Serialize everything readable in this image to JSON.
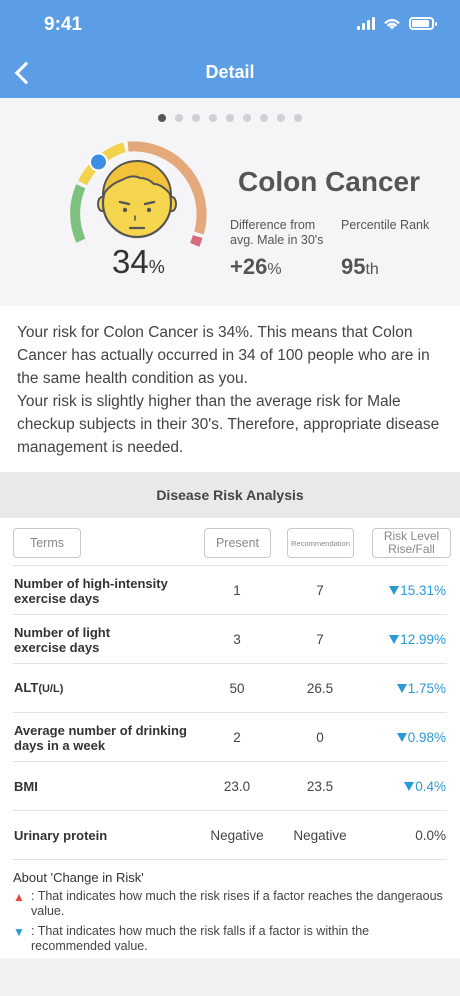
{
  "status": {
    "time": "9:41"
  },
  "nav": {
    "title": "Detail"
  },
  "pager": {
    "count": 9,
    "active": 0
  },
  "gauge": {
    "percent": "34",
    "percent_unit": "%"
  },
  "disease": {
    "name": "Colon Cancer"
  },
  "stats": {
    "difference_label_1": "Difference from",
    "difference_label_2": "avg. Male in 30's",
    "difference_value": "+26",
    "difference_unit": "%",
    "percentile_label": "Percentile Rank",
    "percentile_value": "95",
    "percentile_unit": "th"
  },
  "description": {
    "line1": "Your risk for Colon Cancer is 34%. This means that Colon Cancer has actually occurred in 34 of 100 people who are in the same health condition as you.",
    "line2": "Your risk is slightly higher than the average risk for Male checkup subjects in their 30's. Therefore, appropriate disease management is needed."
  },
  "analysis": {
    "title": "Disease Risk Analysis",
    "headers": {
      "terms": "Terms",
      "present": "Present",
      "recommendation": "Recommendation",
      "risk1": "Risk Level",
      "risk2": "Rise/Fall"
    },
    "rows": [
      {
        "term1": "Number of high-intensity",
        "term2": "exercise days",
        "present": "1",
        "recommendation": "7",
        "risk": "15.31%"
      },
      {
        "term1": "Number of light",
        "term2": "exercise days",
        "present": "3",
        "recommendation": "7",
        "risk": "12.99%"
      },
      {
        "term1": "ALT",
        "term_unit": "(U/L)",
        "present": "50",
        "recommendation": "26.5",
        "risk": "1.75%"
      },
      {
        "term1": "Average number of drinking",
        "term2": "days in a week",
        "present": "2",
        "recommendation": "0",
        "risk": "0.98%"
      },
      {
        "term1": "BMI",
        "present": "23.0",
        "recommendation": "23.5",
        "risk": "0.4%"
      },
      {
        "term1": "Urinary protein",
        "present": "Negative",
        "recommendation": "Negative",
        "risk": "0.0%"
      }
    ],
    "notes": {
      "title": "About 'Change in Risk'",
      "rise_marker": "▲",
      "fall_marker": "▼",
      "rise": ": That indicates how much the risk rises if a factor reaches the dangeraous value.",
      "fall": ": That indicates how much the risk falls if a factor is within the recommended value."
    }
  },
  "colors": {
    "header": "#5b9ee6",
    "gauge_green": "#7ec17e",
    "gauge_yellow": "#f2d34b",
    "gauge_orange": "#e3a97a",
    "gauge_red": "#d56b7c",
    "indicator": "#3b8fe3",
    "fall": "#2a9ad6",
    "rise": "#e34a3a"
  }
}
